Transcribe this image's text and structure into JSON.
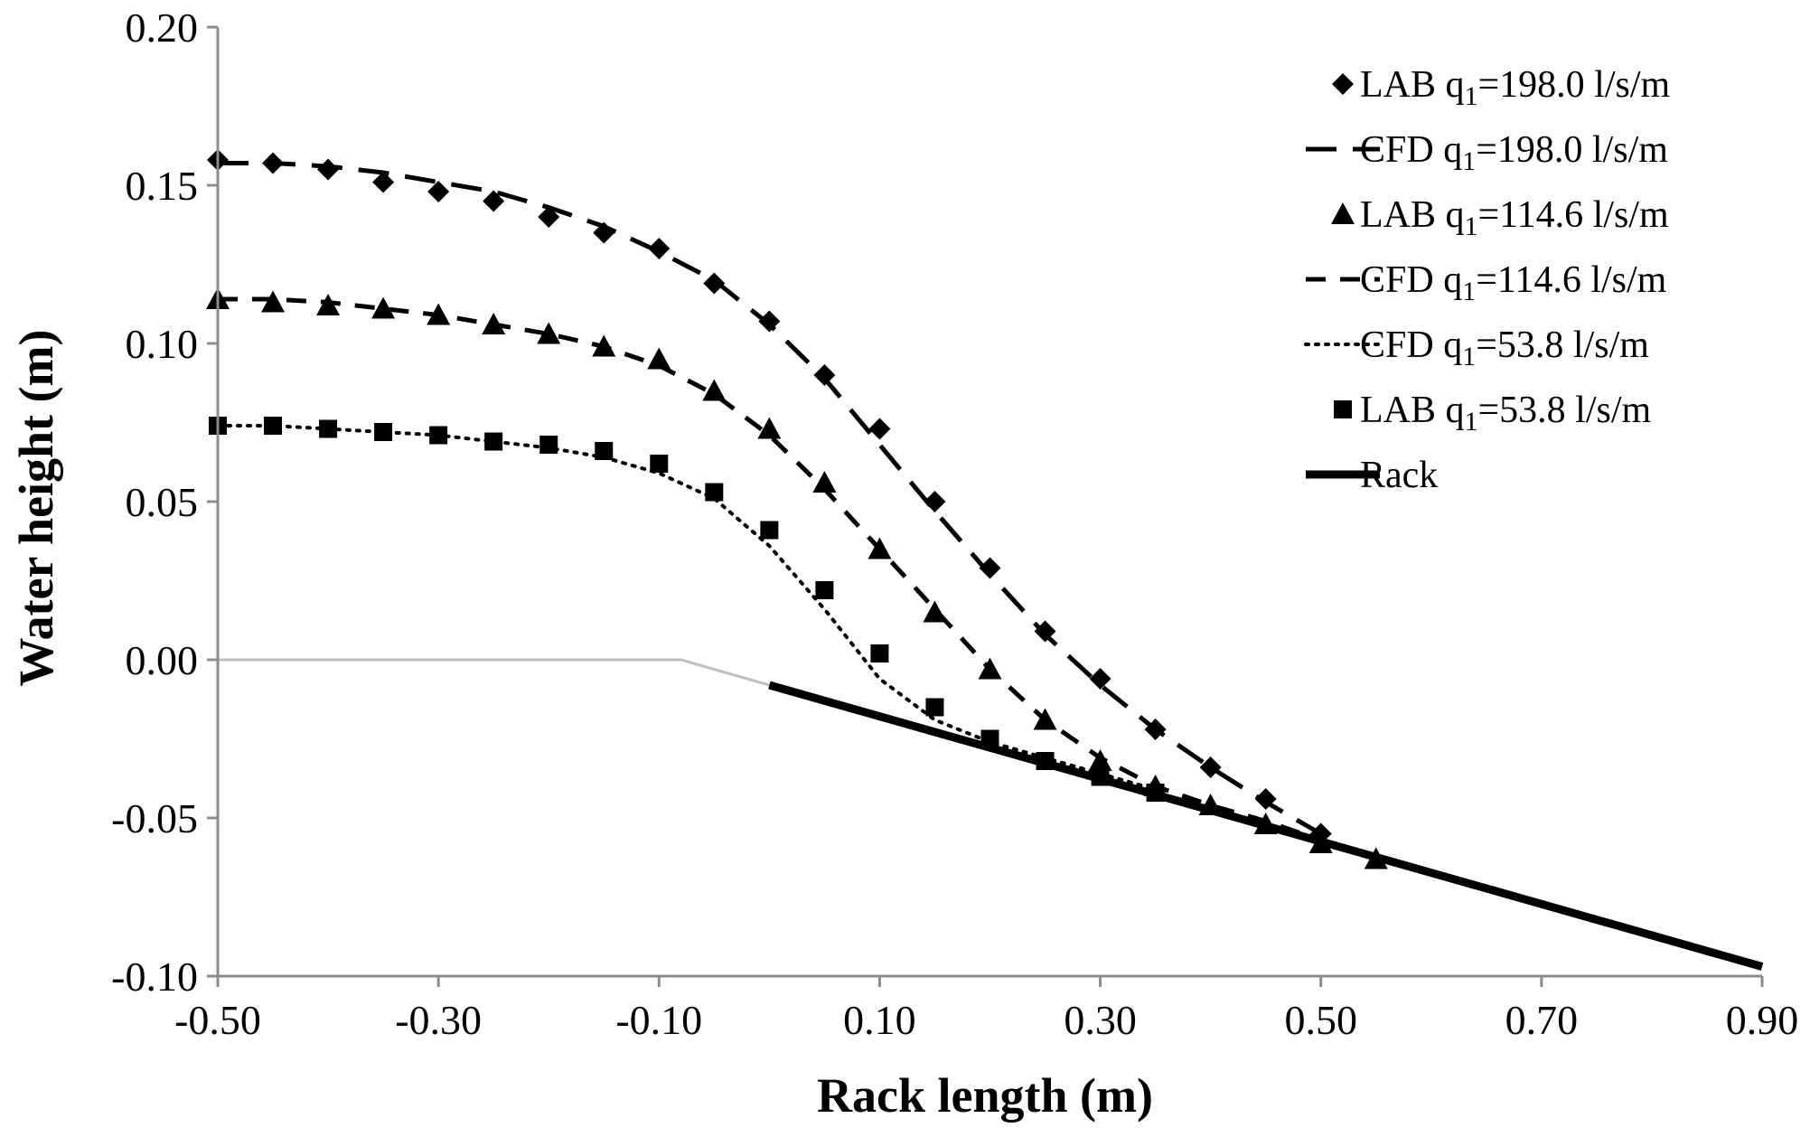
{
  "chart_data": {
    "type": "line",
    "xlabel": "Rack length (m)",
    "ylabel": "Water height (m)",
    "xlim": [
      -0.5,
      0.9
    ],
    "ylim": [
      -0.1,
      0.2
    ],
    "x_ticks": [
      "-0.50",
      "-0.30",
      "-0.10",
      "0.10",
      "0.30",
      "0.50",
      "0.70",
      "0.90"
    ],
    "y_ticks": [
      "0.20",
      "0.15",
      "0.10",
      "0.05",
      "0.00",
      "-0.05",
      "-0.10"
    ],
    "grid": false,
    "legend_position": "top-right",
    "channel_bed": {
      "color": "#bfbfbf",
      "x": [
        -0.5,
        -0.08,
        0.0
      ],
      "y": [
        0.0,
        0.0,
        -0.008
      ]
    },
    "series": [
      {
        "key": "lab198",
        "name": "LAB q",
        "subscript": "1",
        "suffix": "=198.0 l/s/m",
        "kind": "markers",
        "marker": "diamond",
        "color": "#000000",
        "x": [
          -0.5,
          -0.45,
          -0.4,
          -0.35,
          -0.3,
          -0.25,
          -0.2,
          -0.15,
          -0.1,
          -0.05,
          0.0,
          0.05,
          0.1,
          0.15,
          0.2,
          0.25,
          0.3,
          0.35,
          0.4,
          0.45,
          0.5
        ],
        "y": [
          0.158,
          0.157,
          0.155,
          0.151,
          0.148,
          0.145,
          0.14,
          0.135,
          0.13,
          0.119,
          0.107,
          0.09,
          0.073,
          0.05,
          0.029,
          0.009,
          -0.006,
          -0.022,
          -0.034,
          -0.044,
          -0.055
        ]
      },
      {
        "key": "cfd198",
        "name": "CFD q",
        "subscript": "1",
        "suffix": "=198.0 l/s/m",
        "kind": "line",
        "dash": "long",
        "color": "#000000",
        "x": [
          -0.5,
          -0.45,
          -0.4,
          -0.35,
          -0.3,
          -0.25,
          -0.2,
          -0.15,
          -0.1,
          -0.05,
          0.0,
          0.05,
          0.1,
          0.15,
          0.2,
          0.25,
          0.3,
          0.35,
          0.4,
          0.45,
          0.5
        ],
        "y": [
          0.157,
          0.157,
          0.156,
          0.154,
          0.151,
          0.148,
          0.143,
          0.137,
          0.129,
          0.12,
          0.106,
          0.089,
          0.068,
          0.047,
          0.027,
          0.008,
          -0.008,
          -0.022,
          -0.034,
          -0.045,
          -0.055
        ]
      },
      {
        "key": "lab114",
        "name": "LAB q",
        "subscript": "1",
        "suffix": "=114.6 l/s/m",
        "kind": "markers",
        "marker": "triangle",
        "color": "#000000",
        "x": [
          -0.5,
          -0.45,
          -0.4,
          -0.35,
          -0.3,
          -0.25,
          -0.2,
          -0.15,
          -0.1,
          -0.05,
          0.0,
          0.05,
          0.1,
          0.15,
          0.2,
          0.25,
          0.3,
          0.35,
          0.4,
          0.45,
          0.5,
          0.55
        ],
        "y": [
          0.114,
          0.113,
          0.112,
          0.111,
          0.109,
          0.106,
          0.103,
          0.099,
          0.095,
          0.085,
          0.073,
          0.056,
          0.035,
          0.015,
          -0.003,
          -0.019,
          -0.032,
          -0.04,
          -0.046,
          -0.052,
          -0.058,
          -0.063
        ]
      },
      {
        "key": "cfd114",
        "name": "CFD q",
        "subscript": "1",
        "suffix": "=114.6 l/s/m",
        "kind": "line",
        "dash": "medium",
        "color": "#000000",
        "x": [
          -0.5,
          -0.45,
          -0.4,
          -0.35,
          -0.3,
          -0.25,
          -0.2,
          -0.15,
          -0.1,
          -0.05,
          0.0,
          0.05,
          0.1,
          0.15,
          0.2,
          0.25,
          0.3,
          0.35,
          0.4,
          0.45,
          0.5
        ],
        "y": [
          0.114,
          0.114,
          0.113,
          0.111,
          0.109,
          0.106,
          0.103,
          0.099,
          0.093,
          0.084,
          0.071,
          0.054,
          0.035,
          0.016,
          -0.003,
          -0.019,
          -0.031,
          -0.04,
          -0.046,
          -0.051,
          -0.057
        ]
      },
      {
        "key": "cfd53",
        "name": "CFD q",
        "subscript": "1",
        "suffix": "=53.8 l/s/m",
        "kind": "line",
        "dash": "dotted",
        "color": "#000000",
        "x": [
          -0.5,
          -0.45,
          -0.4,
          -0.35,
          -0.3,
          -0.25,
          -0.2,
          -0.15,
          -0.1,
          -0.05,
          0.0,
          0.05,
          0.1,
          0.15,
          0.2,
          0.25,
          0.3,
          0.35
        ],
        "y": [
          0.074,
          0.074,
          0.073,
          0.072,
          0.071,
          0.069,
          0.067,
          0.064,
          0.059,
          0.051,
          0.036,
          0.016,
          -0.006,
          -0.019,
          -0.026,
          -0.031,
          -0.036,
          -0.041
        ]
      },
      {
        "key": "lab53",
        "name": "LAB q",
        "subscript": "1",
        "suffix": "=53.8 l/s/m",
        "kind": "markers",
        "marker": "square",
        "color": "#000000",
        "x": [
          -0.5,
          -0.45,
          -0.4,
          -0.35,
          -0.3,
          -0.25,
          -0.2,
          -0.15,
          -0.1,
          -0.05,
          0.0,
          0.05,
          0.1,
          0.15,
          0.2,
          0.25,
          0.3,
          0.35
        ],
        "y": [
          0.074,
          0.074,
          0.073,
          0.072,
          0.071,
          0.069,
          0.068,
          0.066,
          0.062,
          0.053,
          0.041,
          0.022,
          0.002,
          -0.015,
          -0.025,
          -0.032,
          -0.037,
          -0.042
        ]
      },
      {
        "key": "rack",
        "name": "Rack",
        "subscript": "",
        "suffix": "",
        "kind": "line",
        "dash": "solid",
        "color": "#000000",
        "x": [
          0.0,
          0.9
        ],
        "y": [
          -0.008,
          -0.097
        ]
      }
    ]
  }
}
